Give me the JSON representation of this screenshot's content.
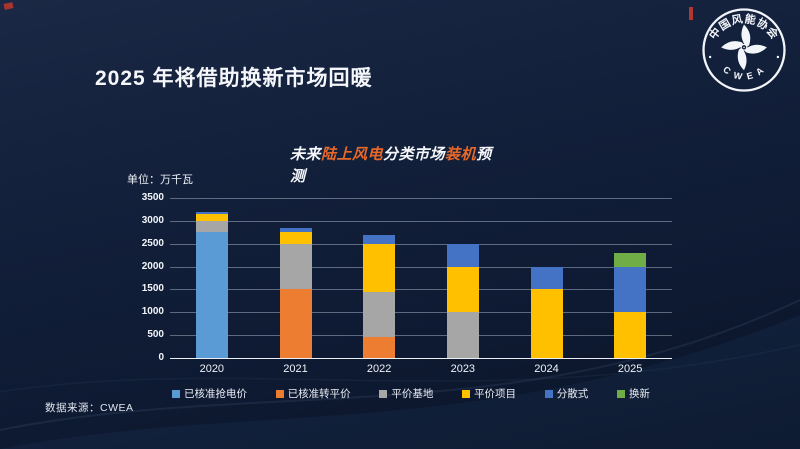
{
  "slide": {
    "title": "2025 年将借助换新市场回暖",
    "source": "数据来源：CWEA",
    "logo": {
      "org_cn": "中国风能协会",
      "org_en": "C W E A"
    }
  },
  "chart_data": {
    "type": "bar",
    "stacked": true,
    "title_parts": [
      {
        "text": "未来",
        "color": "#f5f7fb"
      },
      {
        "text": "陆上风电",
        "color": "#e8682a"
      },
      {
        "text": "分类市场",
        "color": "#f5f7fb"
      },
      {
        "text": "装机",
        "color": "#e8682a"
      },
      {
        "text": "预测",
        "color": "#f5f7fb"
      }
    ],
    "unit_label": "单位：万千瓦",
    "categories": [
      "2020",
      "2021",
      "2022",
      "2023",
      "2024",
      "2025"
    ],
    "series": [
      {
        "name": "已核准抢电价",
        "color": "#5B9BD5",
        "values": [
          2750,
          0,
          0,
          0,
          0,
          0
        ]
      },
      {
        "name": "已核准转平价",
        "color": "#ED7D31",
        "values": [
          0,
          1500,
          450,
          0,
          0,
          0
        ]
      },
      {
        "name": "平价基地",
        "color": "#A6A6A6",
        "values": [
          250,
          1000,
          1000,
          1000,
          0,
          0
        ]
      },
      {
        "name": "平价项目",
        "color": "#FFC000",
        "values": [
          150,
          250,
          1050,
          1000,
          1500,
          1000
        ]
      },
      {
        "name": "分散式",
        "color": "#4472C4",
        "values": [
          50,
          100,
          200,
          500,
          500,
          1000
        ]
      },
      {
        "name": "换新",
        "color": "#70AD47",
        "values": [
          0,
          0,
          0,
          0,
          0,
          300
        ]
      }
    ],
    "ylim": [
      0,
      3500
    ],
    "ytick_step": 500,
    "grid": true,
    "legend_position": "bottom"
  }
}
